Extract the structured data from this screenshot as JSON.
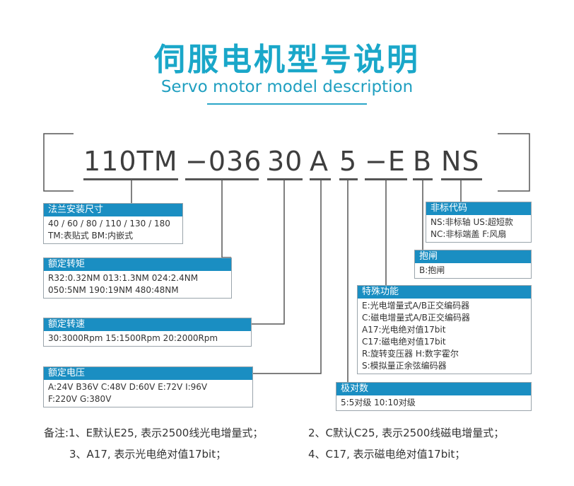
{
  "title": "伺服电机型号说明",
  "subtitle": "Servo motor model description",
  "model_code": {
    "segments": [
      "110TM",
      "−036",
      "30",
      "A",
      "5",
      "−E",
      "B",
      "NS"
    ]
  },
  "boxes": {
    "flange": {
      "title": "法兰安装尺寸",
      "lines": [
        "40 / 60 / 80 / 110 / 130 / 180",
        "TM:表贴式            BM:内嵌式"
      ]
    },
    "torque": {
      "title": "额定转矩",
      "lines": [
        "R32:0.32NM    013:1.3NM    024:2.4NM",
        "050:5NM    190:19NM    480:48NM"
      ]
    },
    "speed": {
      "title": "额定转速",
      "lines": [
        "30:3000Rpm   15:1500Rpm    20:2000Rpm"
      ]
    },
    "voltage": {
      "title": "额定电压",
      "lines": [
        "A:24V    B36V    C:48V    D:60V    E:72V    I:96V",
        "F:220V      G:380V"
      ]
    },
    "nonstandard": {
      "title": "非标代码",
      "lines": [
        "NS:非标轴    US:超短款",
        "NC:非标端盖    F:风扇"
      ]
    },
    "brake": {
      "title": "抱闸",
      "lines": [
        "B:抱闸"
      ]
    },
    "special": {
      "title": "特殊功能",
      "lines": [
        "E:光电增量式A/B正交编码器",
        "C:磁电增量式A/B正交编码器",
        "A17:光电绝对值17bit",
        "C17:磁电绝对值17bit",
        "R:旋转变压器            H:数字霍尔",
        "S:模拟量正余弦编码器"
      ]
    },
    "poles": {
      "title": "极对数",
      "lines": [
        "5:5对级        10:10对级"
      ]
    }
  },
  "notes": {
    "line1_a": "备注:1、E默认E25, 表示2500线光电增量式；",
    "line1_b": "2、C默认C25, 表示2500线磁电增量式；",
    "line2_a": "3、A17, 表示光电绝对值17bit；",
    "line2_b": "4、C17, 表示磁电绝对值17bit；"
  },
  "colors": {
    "accent": "#1aa7c9",
    "header": "#1a8ec2",
    "text": "#333333"
  }
}
